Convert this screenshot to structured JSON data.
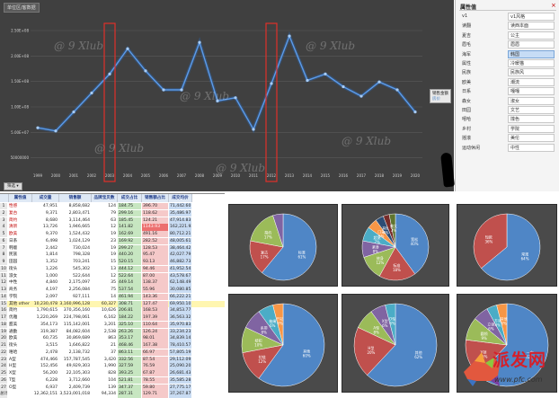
{
  "chart": {
    "corner_label": "单位区/客数据",
    "y_ticks": [
      "2.50E+08",
      "2.00E+08",
      "1.50E+08",
      "1.00E+08",
      "5.00E+07",
      "50000000"
    ],
    "x_ticks": [
      "1999",
      "2000",
      "2001",
      "2002",
      "2003",
      "2004",
      "2005",
      "2006",
      "2007",
      "2008",
      "2009",
      "2010",
      "2011",
      "2012",
      "2013",
      "2014",
      "2015",
      "2016",
      "2017",
      "2018",
      "2019",
      "2020"
    ],
    "values": [
      0.26,
      0.24,
      0.36,
      0.48,
      0.6,
      0.76,
      0.62,
      0.5,
      0.5,
      0.8,
      0.43,
      0.45,
      0.25,
      0.54,
      0.84,
      0.56,
      0.6,
      0.52,
      0.46,
      0.55,
      0.5,
      0.36
    ],
    "legend_label": "销售金额",
    "legend_series": "房价",
    "filter_label": "筛选",
    "watermark": "@ 9 Xlub"
  },
  "properties": {
    "title": "属性值",
    "close": "×",
    "rows": [
      {
        "k": "v1",
        "v": "v1风格"
      },
      {
        "k": "读翻",
        "v": "读西本面"
      },
      {
        "k": "夏吉",
        "v": "公主"
      },
      {
        "k": "眉毛",
        "v": "眉眉"
      },
      {
        "k": "海军",
        "v": "韩国"
      },
      {
        "k": "属性",
        "v": "冷暖猫"
      },
      {
        "k": "民族",
        "v": "民族风"
      },
      {
        "k": "欧美",
        "v": "潮流"
      },
      {
        "k": "日系",
        "v": "嘎嘎"
      },
      {
        "k": "森女",
        "v": "淑女"
      },
      {
        "k": "田园",
        "v": "文艺"
      },
      {
        "k": "嘻哈",
        "v": "撞色"
      },
      {
        "k": "乡村",
        "v": "学院"
      },
      {
        "k": "摇滚",
        "v": "美伦"
      },
      {
        "k": "运动休闲",
        "v": "中性"
      }
    ],
    "selected_index": 4
  },
  "table": {
    "headers": [
      "",
      "属性值",
      "成交量",
      "销售额",
      "品牌宝贝数",
      "成交占比",
      "销售额占比",
      "成交均价"
    ],
    "rows": [
      [
        "1",
        "性感",
        "47,951",
        "8,858,682",
        "124",
        "184.75",
        "396.70",
        "71,442.60"
      ],
      [
        "2",
        "复古",
        "9,371",
        "2,803,471",
        "79",
        "299.16",
        "118.62",
        "35,486.97"
      ],
      [
        "3",
        "简约",
        "8,680",
        "3,114,464",
        "63",
        "185.45",
        "124.21",
        "47,914.83"
      ],
      [
        "4",
        "清新",
        "13,726",
        "1,946,665",
        "12",
        "141.82",
        "1143.93",
        "162,221.92"
      ],
      [
        "5",
        "欧美",
        "9,370",
        "1,524,432",
        "19",
        "162.69",
        "491.16",
        "80,712.21"
      ],
      [
        "6",
        "日系",
        "6,498",
        "1,024,129",
        "23",
        "169.92",
        "282.52",
        "48,005.61"
      ],
      [
        "7",
        "韩版",
        "2,442",
        "730,024",
        "19",
        "299.27",
        "128.53",
        "38,464.42"
      ],
      [
        "8",
        "民族",
        "1,814",
        "798,328",
        "19",
        "440.20",
        "95.47",
        "42,027.79"
      ],
      [
        "9",
        "田园",
        "1,352",
        "703,241",
        "15",
        "520.15",
        "93.13",
        "46,882.73"
      ],
      [
        "10",
        "街头",
        "1,226",
        "545,302",
        "13",
        "444.12",
        "94.46",
        "41,952.54"
      ],
      [
        "11",
        "淑女",
        "1,000",
        "522,644",
        "12",
        "522.64",
        "87.00",
        "43,578.67"
      ],
      [
        "12",
        "中性",
        "4,840",
        "2,175,097",
        "35",
        "449.14",
        "138.37",
        "62,148.49"
      ],
      [
        "13",
        "商务",
        "4,197",
        "2,256,084",
        "75",
        "537.54",
        "55.96",
        "30,080.85"
      ],
      [
        "14",
        "学院",
        "2,097",
        "927,111",
        "14",
        "461.94",
        "143.36",
        "66,222.21"
      ],
      [
        "15",
        "其他 other",
        "10,230,478",
        "3,160,996,128",
        "60,327",
        "308.71",
        "127.47",
        "69,950.10"
      ],
      [
        "16",
        "简约",
        "1,790,615",
        "370,356,160",
        "10,626",
        "206.81",
        "168.53",
        "34,853.77"
      ],
      [
        "17",
        "优雅",
        "1,220,269",
        "224,798,061",
        "6,162",
        "184.22",
        "197.39",
        "36,563.32"
      ],
      [
        "18",
        "甜美",
        "354,173",
        "115,142,001",
        "3,201",
        "325.10",
        "110.64",
        "35,970.83"
      ],
      [
        "19",
        "通勤",
        "319,387",
        "84,082,604",
        "2,538",
        "263.26",
        "126.24",
        "33,234.23"
      ],
      [
        "20",
        "欧美",
        "60,735",
        "30,869,689",
        "863",
        "353.17",
        "98.01",
        "34,839.14"
      ],
      [
        "21",
        "街头",
        "3,515",
        "1,646,822",
        "21",
        "468.46",
        "167.38",
        "78,410.57"
      ],
      [
        "22",
        "嘻哈",
        "2,478",
        "2,138,732",
        "37",
        "863.11",
        "66.97",
        "57,805.19"
      ],
      [
        "23",
        "A型",
        "474,466",
        "157,787,545",
        "3,420",
        "332.56",
        "87.54",
        "29,112.09"
      ],
      [
        "24",
        "H型",
        "152,456",
        "49,929,303",
        "1,990",
        "327.59",
        "76.59",
        "25,090.20"
      ],
      [
        "25",
        "X型",
        "56,200",
        "22,105,303",
        "828",
        "393.25",
        "67.87",
        "26,681.43"
      ],
      [
        "26",
        "T型",
        "6,228",
        "3,712,660",
        "104",
        "521.81",
        "78.55",
        "35,585.28"
      ],
      [
        "27",
        "O型",
        "6,937",
        "2,409,739",
        "139",
        "347.37",
        "59.80",
        "27,775.17"
      ],
      [
        "总计",
        "",
        "12,362,151",
        "3,523,001,018",
        "94,334",
        "287.31",
        "129.71",
        "37,267.87"
      ]
    ]
  },
  "pies": [
    {
      "values": [
        61,
        17,
        17,
        5
      ],
      "colors": [
        "#4f86c6",
        "#c0504d",
        "#9bbb59",
        "#8064a2"
      ],
      "labels": [
        "标准",
        "复古",
        "简约",
        ""
      ],
      "pcts": [
        "61%",
        "17%",
        "17%",
        ""
      ]
    },
    {
      "values": [
        40,
        18,
        12,
        8,
        7,
        5,
        4,
        3,
        3
      ],
      "colors": [
        "#4f86c6",
        "#c0504d",
        "#9bbb59",
        "#8064a2",
        "#4bacc6",
        "#f79646",
        "#2c4d75",
        "#772c2a",
        "#5f7530"
      ],
      "labels": [
        "宽松",
        "标准",
        "修身",
        "紧身",
        "超宽",
        "口袋",
        "其他",
        "",
        "偏大"
      ],
      "pcts": [
        "40%",
        "18%",
        "12%",
        "8%",
        "7%",
        "5%",
        "4%",
        "3%",
        "3%"
      ]
    },
    {
      "values": [
        64,
        36
      ],
      "colors": [
        "#4f86c6",
        "#c0504d"
      ],
      "labels": [
        "常规",
        "短款"
      ],
      "pcts": [
        "64%",
        "36%"
      ]
    },
    {
      "values": [
        60,
        12,
        10,
        8,
        6,
        4
      ],
      "colors": [
        "#4f86c6",
        "#c0504d",
        "#9bbb59",
        "#8064a2",
        "#4bacc6",
        "#f79646"
      ],
      "labels": [
        "其他",
        "拉链",
        "纽扣",
        "系带",
        "抽绳",
        "开衫"
      ],
      "pcts": [
        "60%",
        "12%",
        "10%",
        "8%",
        "6%",
        "4%"
      ]
    },
    {
      "values": [
        62,
        20,
        8,
        6,
        4
      ],
      "colors": [
        "#4f86c6",
        "#c0504d",
        "#9bbb59",
        "#8064a2",
        "#4bacc6"
      ],
      "labels": [
        "其他",
        "H型",
        "A型",
        "X型",
        "O型"
      ],
      "pcts": [
        "62%",
        "20%",
        "8%",
        "6%",
        "4%"
      ]
    },
    {
      "values": [
        62,
        15,
        9,
        6,
        4,
        4
      ],
      "colors": [
        "#4f86c6",
        "#c0504d",
        "#9bbb59",
        "#8064a2",
        "#4bacc6",
        "#f79646"
      ],
      "labels": [
        "一字",
        "V领",
        "圆领",
        "立领",
        "方领",
        "其他"
      ],
      "pcts": [
        "62%",
        "15%",
        "9%",
        "6%",
        "4%",
        "4%"
      ]
    }
  ],
  "brand": {
    "logo_text": "派发网",
    "url": "www.pfc.com"
  }
}
